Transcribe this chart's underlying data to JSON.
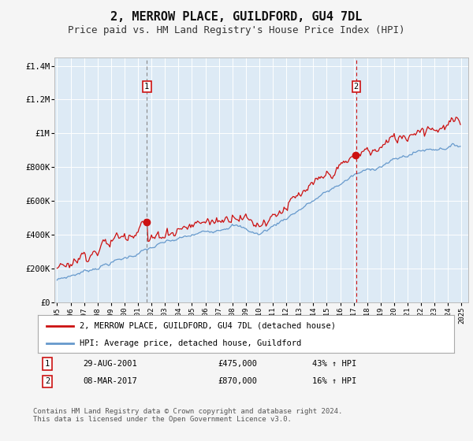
{
  "title": "2, MERROW PLACE, GUILDFORD, GU4 7DL",
  "subtitle": "Price paid vs. HM Land Registry's House Price Index (HPI)",
  "title_fontsize": 11,
  "subtitle_fontsize": 9,
  "fig_bg_color": "#f5f5f5",
  "plot_bg_color": "#ddeaf5",
  "line1_color": "#cc1111",
  "line2_color": "#6699cc",
  "grid_color": "#ffffff",
  "marker1_date_x": 2001.66,
  "marker1_y": 475000,
  "marker2_date_x": 2017.18,
  "marker2_y": 870000,
  "xmin": 1994.8,
  "xmax": 2025.5,
  "ymin": 0,
  "ymax": 1450000,
  "yticks": [
    0,
    200000,
    400000,
    600000,
    800000,
    1000000,
    1200000,
    1400000
  ],
  "ytick_labels": [
    "£0",
    "£200K",
    "£400K",
    "£600K",
    "£800K",
    "£1M",
    "£1.2M",
    "£1.4M"
  ],
  "legend1_label": "2, MERROW PLACE, GUILDFORD, GU4 7DL (detached house)",
  "legend2_label": "HPI: Average price, detached house, Guildford",
  "note1_label": "1",
  "note1_date": "29-AUG-2001",
  "note1_price": "£475,000",
  "note1_hpi": "43% ↑ HPI",
  "note2_label": "2",
  "note2_date": "08-MAR-2017",
  "note2_price": "£870,000",
  "note2_hpi": "16% ↑ HPI",
  "footer": "Contains HM Land Registry data © Crown copyright and database right 2024.\nThis data is licensed under the Open Government Licence v3.0."
}
